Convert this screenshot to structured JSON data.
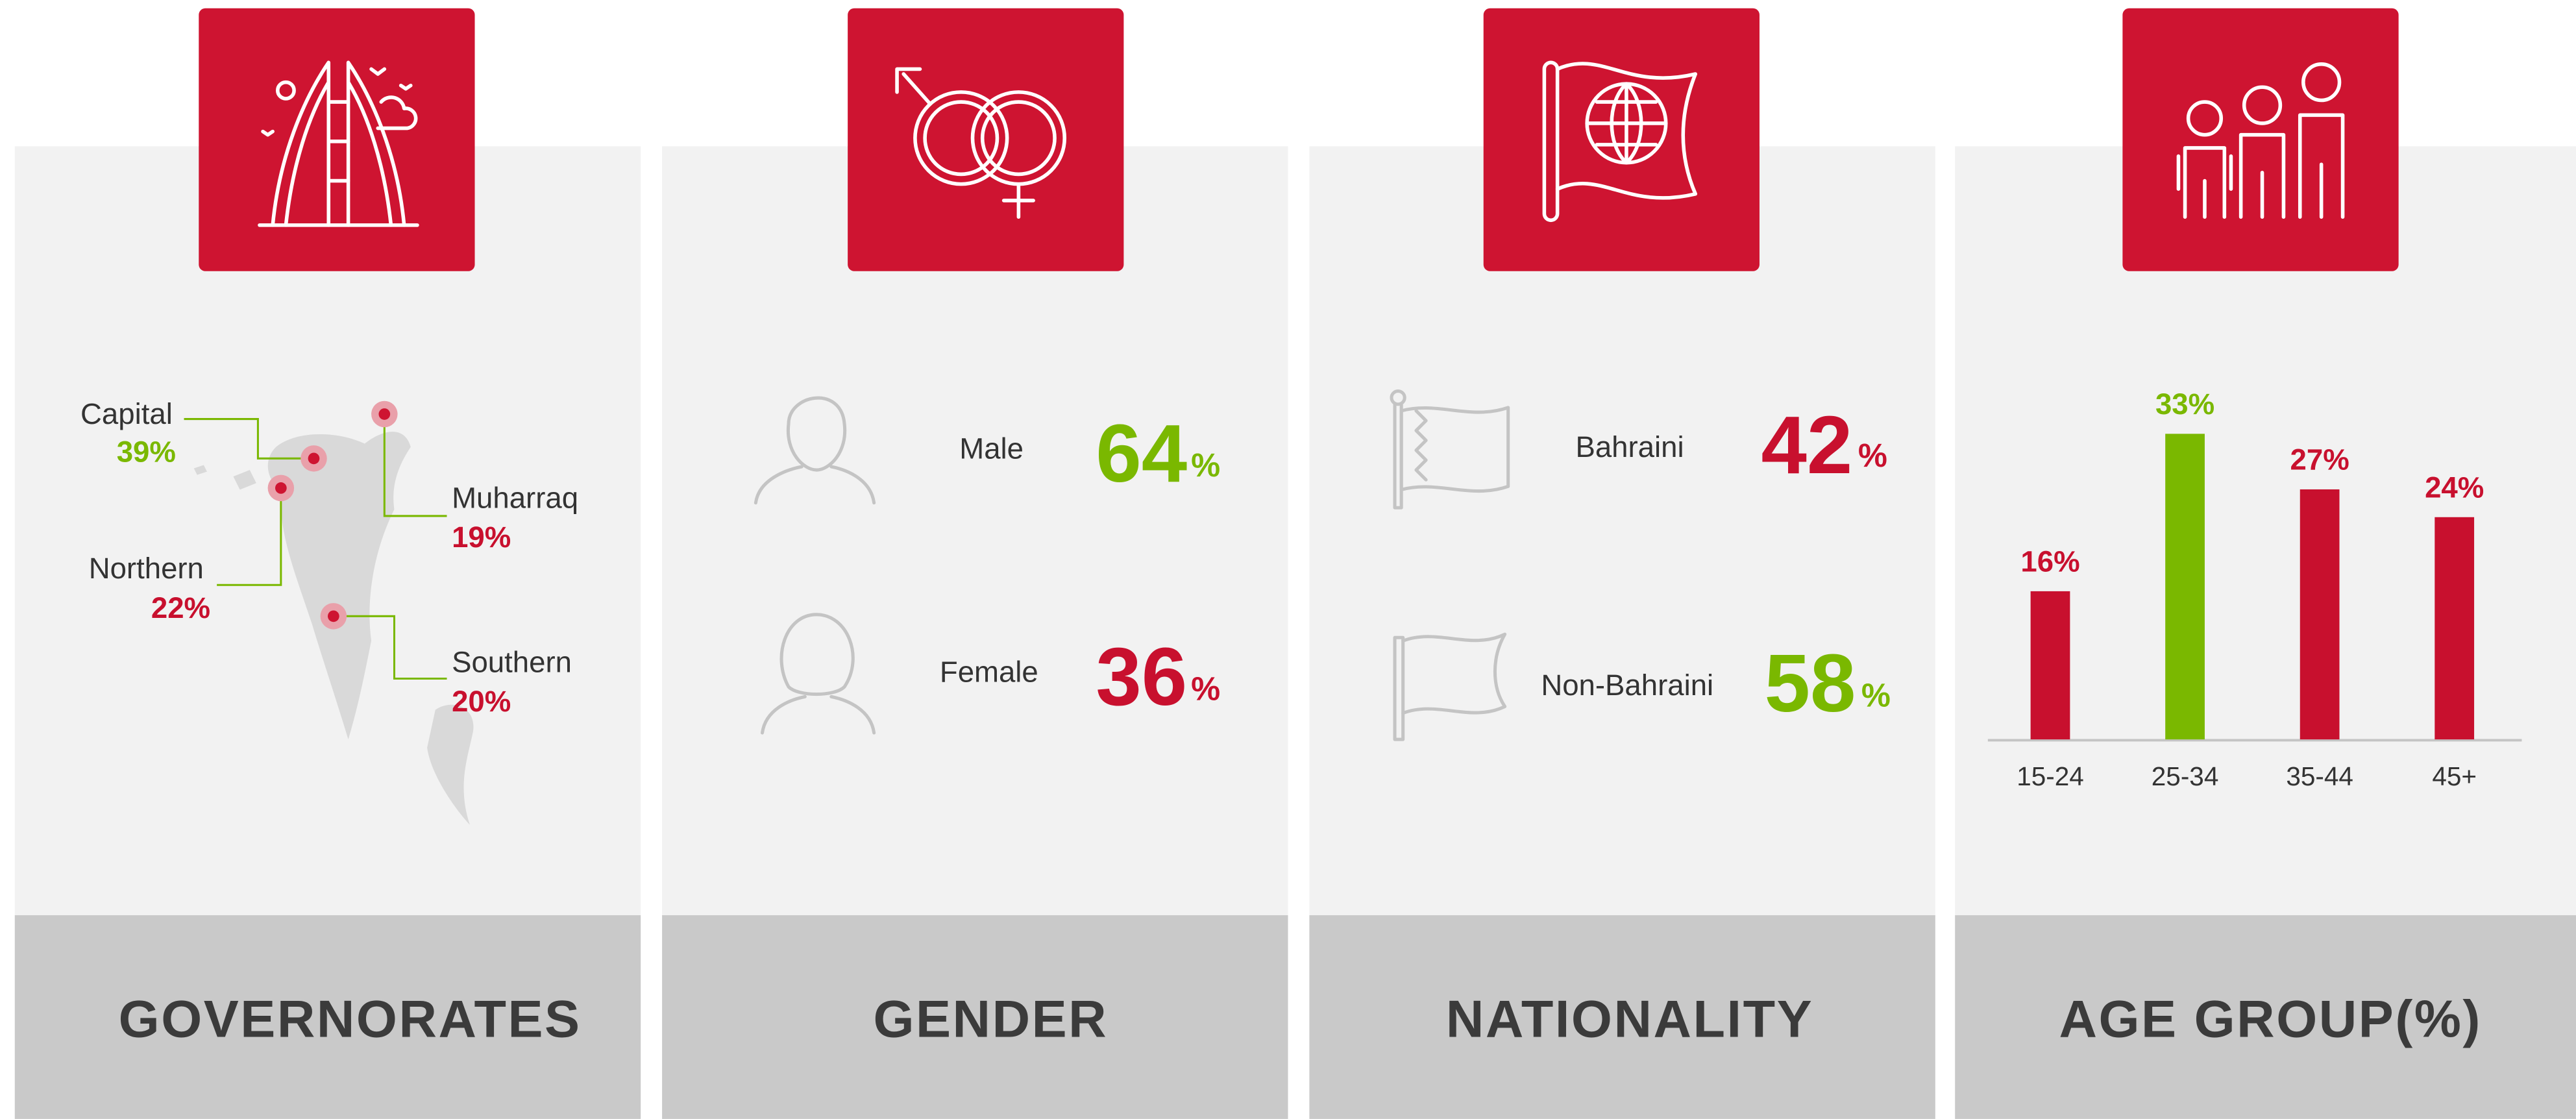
{
  "panels": [
    {
      "title": "GOVERNORATES",
      "items": [
        {
          "name": "Capital",
          "value": "39%",
          "color": "#7ab800"
        },
        {
          "name": "Muharraq",
          "value": "19%",
          "color": "#c8102e"
        },
        {
          "name": "Northern",
          "value": "22%",
          "color": "#c8102e"
        },
        {
          "name": "Southern",
          "value": "20%",
          "color": "#c8102e"
        }
      ]
    },
    {
      "title": "GENDER",
      "items": [
        {
          "name": "Male",
          "value": "64",
          "unit": "%",
          "color": "#7ab800"
        },
        {
          "name": "Female",
          "value": "36",
          "unit": "%",
          "color": "#c8102e"
        }
      ]
    },
    {
      "title": "NATIONALITY",
      "items": [
        {
          "name": "Bahraini",
          "value": "42",
          "unit": "%",
          "color": "#c8102e"
        },
        {
          "name": "Non-Bahraini",
          "value": "58",
          "unit": "%",
          "color": "#7ab800"
        }
      ]
    },
    {
      "title": "AGE GROUP(%)",
      "chart": {
        "type": "bar",
        "categories": [
          "15-24",
          "25-34",
          "35-44",
          "45+"
        ],
        "values": [
          16,
          33,
          27,
          24
        ],
        "value_labels": [
          "16%",
          "33%",
          "27%",
          "24%"
        ],
        "colors": [
          "#c8102e",
          "#7ab800",
          "#c8102e",
          "#c8102e"
        ]
      }
    }
  ]
}
